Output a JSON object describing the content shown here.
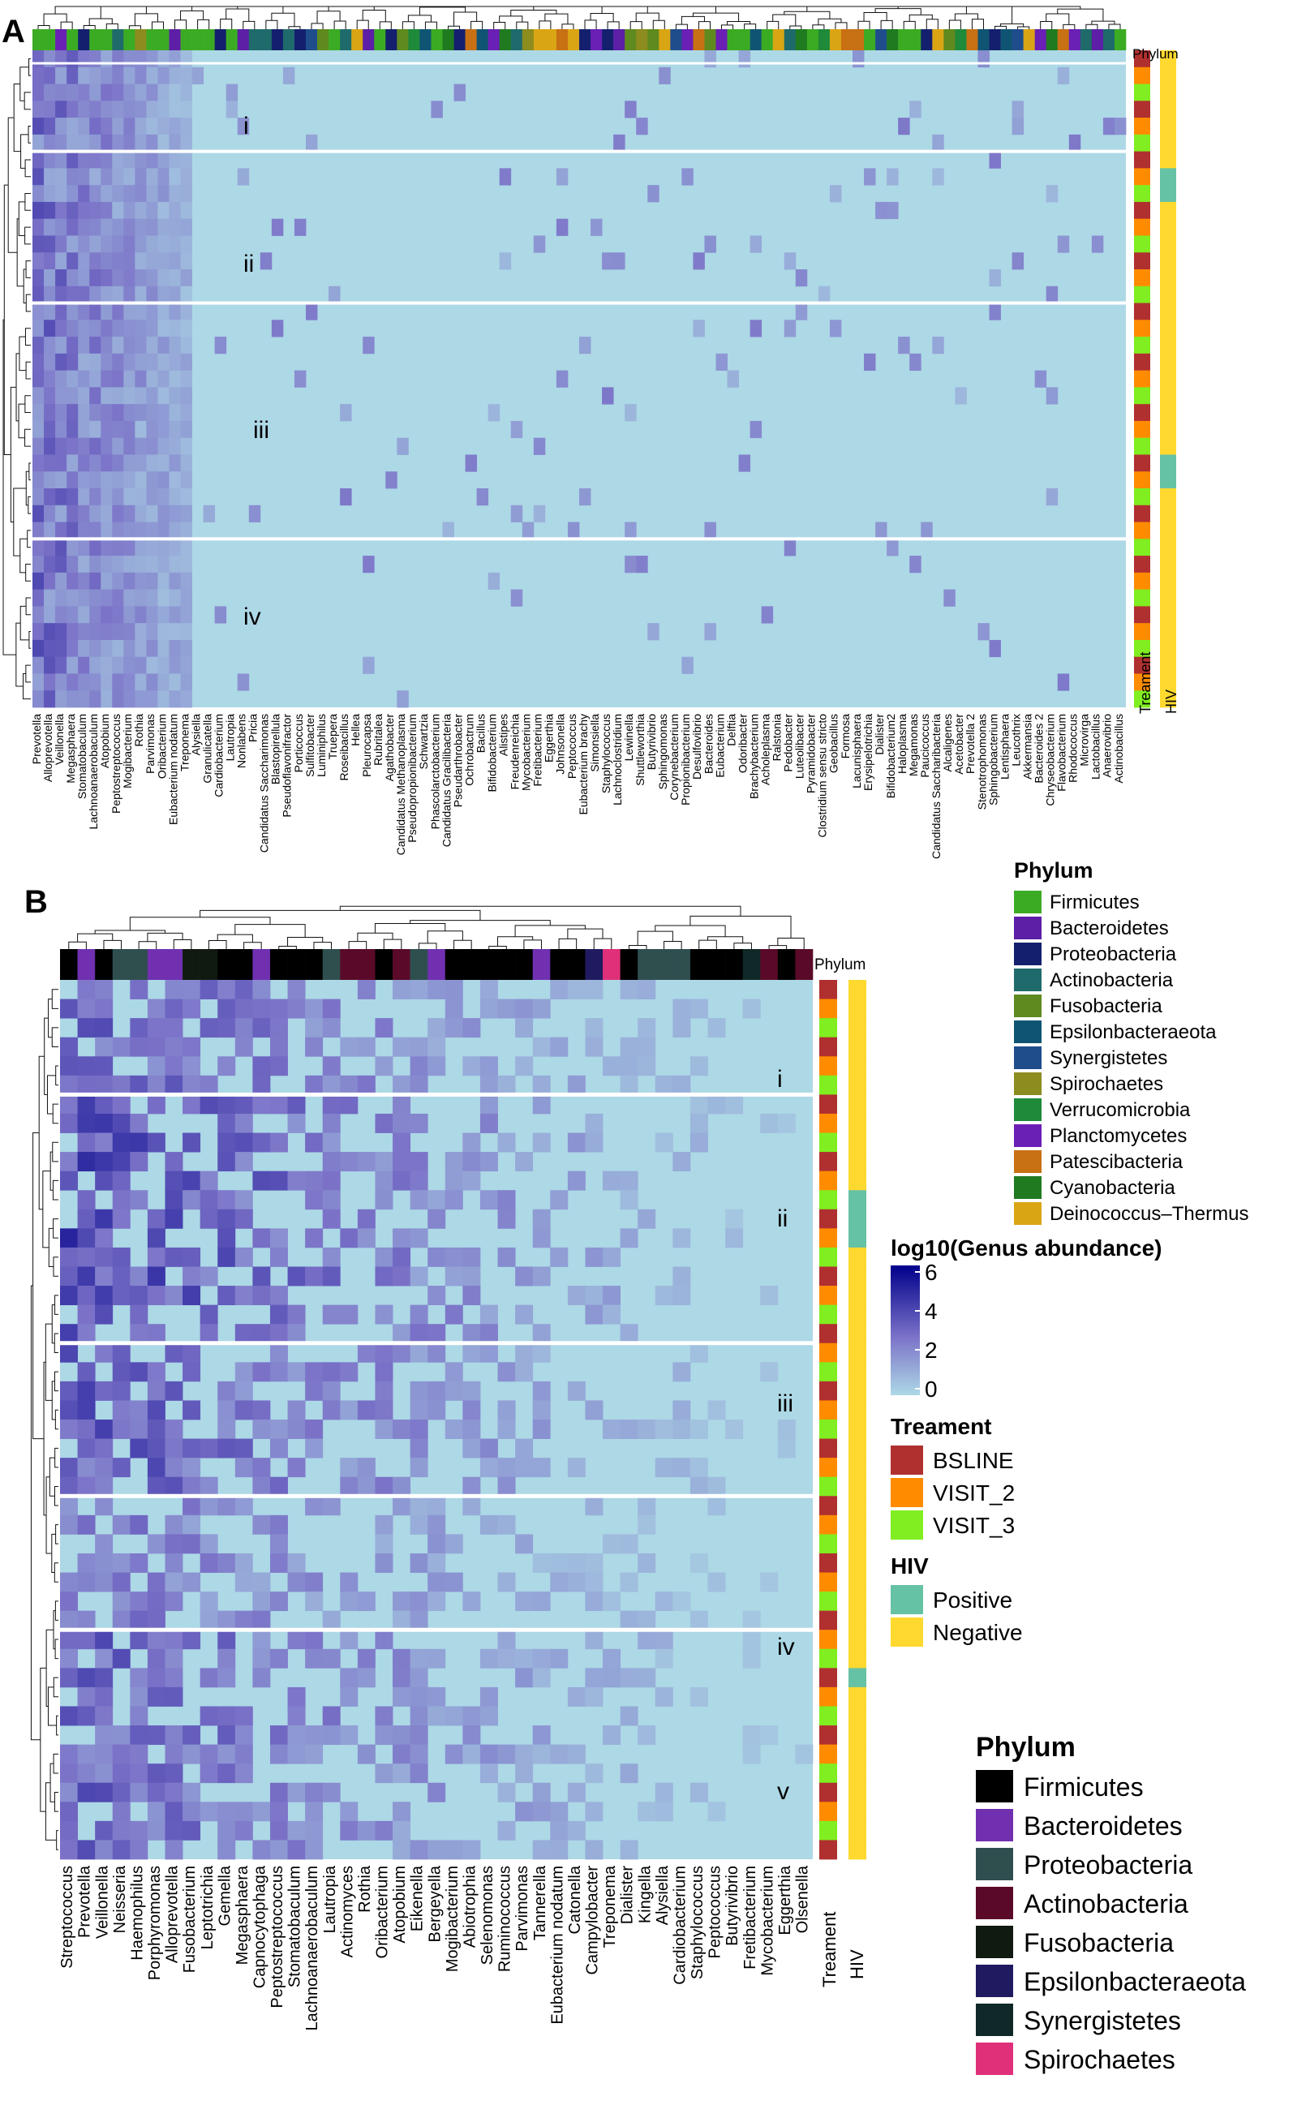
{
  "panels": {
    "a": {
      "letter": "A",
      "cluster_labels": [
        "i",
        "ii",
        "iii",
        "iv"
      ],
      "phylum_bar_label": "Phylum",
      "treatment_bar_label": "Treament",
      "hiv_bar_label": "HIV"
    },
    "b": {
      "letter": "B",
      "cluster_labels": [
        "i",
        "ii",
        "iii",
        "iv",
        "v"
      ],
      "phylum_bar_label": "Phylum",
      "treatment_bar_label": "Treament",
      "hiv_bar_label": "HIV"
    }
  },
  "legend_a_phylum": {
    "title": "Phylum",
    "items": [
      {
        "label": "Firmicutes",
        "color": "#3cab24"
      },
      {
        "label": "Bacteroidetes",
        "color": "#5c1fa6"
      },
      {
        "label": "Proteobacteria",
        "color": "#14206e"
      },
      {
        "label": "Actinobacteria",
        "color": "#1f6b6b"
      },
      {
        "label": "Fusobacteria",
        "color": "#5f8a1f"
      },
      {
        "label": "Epsilonbacteraeota",
        "color": "#0f5573"
      },
      {
        "label": "Synergistetes",
        "color": "#1f4d8c"
      },
      {
        "label": "Spirochaetes",
        "color": "#8c8c1f"
      },
      {
        "label": "Verrucomicrobia",
        "color": "#1e8a3a"
      },
      {
        "label": "Planctomycetes",
        "color": "#6a1fb5"
      },
      {
        "label": "Patescibacteria",
        "color": "#c77014"
      },
      {
        "label": "Cyanobacteria",
        "color": "#207a20"
      },
      {
        "label": "Deinococcus–Thermus",
        "color": "#d9a514"
      }
    ]
  },
  "legend_scale": {
    "title": "log10(Genus abundance)",
    "ticks": [
      "6",
      "4",
      "2",
      "0"
    ]
  },
  "legend_treatment": {
    "title": "Treament",
    "items": [
      {
        "label": "BSLINE",
        "color": "#b03030"
      },
      {
        "label": "VISIT_2",
        "color": "#ff8c00"
      },
      {
        "label": "VISIT_3",
        "color": "#80ee20"
      }
    ]
  },
  "legend_hiv": {
    "title": "HIV",
    "items": [
      {
        "label": "Positive",
        "color": "#66c2a5"
      },
      {
        "label": "Negative",
        "color": "#ffd92f"
      }
    ]
  },
  "legend_b_phylum": {
    "title": "Phylum",
    "items": [
      {
        "label": "Firmicutes",
        "color": "#000000"
      },
      {
        "label": "Bacteroidetes",
        "color": "#7030b0"
      },
      {
        "label": "Proteobacteria",
        "color": "#2f4f4f"
      },
      {
        "label": "Actinobacteria",
        "color": "#5a0a28"
      },
      {
        "label": "Fusobacteria",
        "color": "#101a10"
      },
      {
        "label": "Epsilonbacteraeota",
        "color": "#201a60"
      },
      {
        "label": "Synergistetes",
        "color": "#102828"
      },
      {
        "label": "Spirochaetes",
        "color": "#e0307a"
      }
    ]
  },
  "chart_data": [
    {
      "type": "heatmap",
      "panel": "A",
      "value_label": "log10(Genus abundance)",
      "value_range": [
        0,
        6
      ],
      "rows": 39,
      "row_clusters": [
        "i",
        "ii",
        "iii",
        "iv"
      ],
      "columns": [
        "Prevotella",
        "Alloprevotella",
        "Veillonella",
        "Megasphaera",
        "Stomatobaculum",
        "Lachnoanaerobaculum",
        "Atopobium",
        "Peptostreptococcus",
        "Mogibacterium",
        "Rothia",
        "Parvimonas",
        "Oribacterium",
        "Eubacterium nodatum",
        "Treponema",
        "Alysiella",
        "Granulicatella",
        "Cardiobacterium",
        "Lautropia",
        "Nonlabens",
        "Pricia",
        "Candidatus Saccharimonas",
        "Blastopirellula",
        "Pseudoflavonifractor",
        "Porticoccus",
        "Sulfitobacter",
        "Luminiphilus",
        "Truepera",
        "Roseibacillus",
        "Hellea",
        "Pleurocapsa",
        "Rubritalea",
        "Agathobacter",
        "Candidatus Methanoplasma",
        "Pseudopropionibacterium",
        "Schwartzia",
        "Phascolarctobacterium",
        "Candidatus Gracilibacteria",
        "Pseudarthrobacter",
        "Ochrobactrum",
        "Bacillus",
        "Bifidobacterium",
        "Alistipes",
        "Freudenreichia",
        "Mycobacterium",
        "Fretibacterium",
        "Eggerthia",
        "Johnsonella",
        "Peptococcus",
        "Eubacterium brachy",
        "Simonsiella",
        "Staphylococcus",
        "Lachnoclostridium",
        "Lewinella",
        "Shuttleworthia",
        "Butyrivibrio",
        "Sphingomonas",
        "Corynebacterium",
        "Propionibacterium",
        "Desulfovibrio",
        "Bacteroides",
        "Eubacterium",
        "Delftia",
        "Odoribacter",
        "Brachybacterium",
        "Acholeplasma",
        "Ralstonia",
        "Pedobacter",
        "Luteolibacter",
        "Pyramidobacter",
        "Clostridium sensu stricto",
        "Geobacillus",
        "Formosa",
        "Lacunisphaera",
        "Erysipelotrichia",
        "Dialister",
        "Bifidobacterium2",
        "Haloplasma",
        "Megamonas",
        "Paucicoccus",
        "Candidatus Saccharibacteria",
        "Alcaligenes",
        "Acetobacter",
        "Prevotella 2",
        "Stenotrophomonas",
        "Sphingobacterium",
        "Lentisphaera",
        "Leucothrix",
        "Akkermansia",
        "Bacteroides 2",
        "Chryseobacterium",
        "Flavobacterium",
        "Rhodococcus",
        "Microvirga",
        "Lactobacillus",
        "Anaerovibrio",
        "Actinobacillus"
      ],
      "phylum_colors": [
        "Firmicutes",
        "Bacteroidetes",
        "Proteobacteria",
        "Actinobacteria",
        "Fusobacteria",
        "Epsilonbacteraeota",
        "Synergistetes",
        "Spirochaetes",
        "Verrucomicrobia",
        "Planctomycetes",
        "Patescibacteria",
        "Cyanobacteria",
        "Deinococcus–Thermus"
      ]
    },
    {
      "type": "heatmap",
      "panel": "B",
      "value_label": "log10(Genus abundance)",
      "value_range": [
        0,
        6
      ],
      "rows": 46,
      "row_clusters": [
        "i",
        "ii",
        "iii",
        "iv",
        "v"
      ],
      "columns": [
        "Streptococcus",
        "Prevotella",
        "Veillonella",
        "Neisseria",
        "Haemophilus",
        "Porphyromonas",
        "Alloprevotella",
        "Fusobacterium",
        "Leptotrichia",
        "Gemella",
        "Megasphaera",
        "Capnocytophaga",
        "Peptostreptococcus",
        "Stomatobaculum",
        "Lachnoanaerobaculum",
        "Lautropia",
        "Actinomyces",
        "Rothia",
        "Oribacterium",
        "Atopobium",
        "Eikenella",
        "Bergeyella",
        "Mogibacterium",
        "Abiotrophia",
        "Selenomonas",
        "Ruminococcus",
        "Parvimonas",
        "Tannerella",
        "Eubacterium nodatum",
        "Catonella",
        "Campylobacter",
        "Treponema",
        "Dialister",
        "Kingella",
        "Alysiella",
        "Cardiobacterium",
        "Staphylococcus",
        "Peptococcus",
        "Butyrivibrio",
        "Fretibacterium",
        "Mycobacterium",
        "Eggerthia",
        "Olsenella"
      ],
      "column_phylum": [
        "Firmicutes",
        "Bacteroidetes",
        "Firmicutes",
        "Proteobacteria",
        "Proteobacteria",
        "Bacteroidetes",
        "Bacteroidetes",
        "Fusobacteria",
        "Fusobacteria",
        "Firmicutes",
        "Firmicutes",
        "Bacteroidetes",
        "Firmicutes",
        "Firmicutes",
        "Firmicutes",
        "Proteobacteria",
        "Actinobacteria",
        "Actinobacteria",
        "Firmicutes",
        "Actinobacteria",
        "Proteobacteria",
        "Bacteroidetes",
        "Firmicutes",
        "Firmicutes",
        "Firmicutes",
        "Firmicutes",
        "Firmicutes",
        "Bacteroidetes",
        "Firmicutes",
        "Firmicutes",
        "Epsilonbacteraeota",
        "Spirochaetes",
        "Firmicutes",
        "Proteobacteria",
        "Proteobacteria",
        "Proteobacteria",
        "Firmicutes",
        "Firmicutes",
        "Firmicutes",
        "Synergistetes",
        "Actinobacteria",
        "Firmicutes",
        "Actinobacteria"
      ]
    }
  ]
}
